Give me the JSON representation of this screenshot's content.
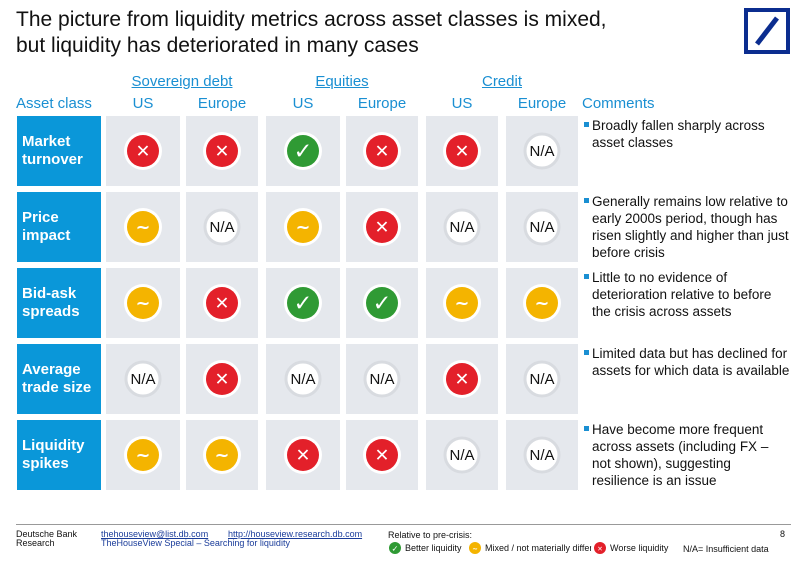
{
  "header": {
    "title": [
      "The picture from liquidity metrics across asset classes is mixed,",
      "but liquidity has deteriorated in many cases"
    ]
  },
  "table": {
    "asset_label": "Asset class",
    "comments_label": "Comments",
    "groups": [
      "Sovereign debt",
      "Equities",
      "Credit"
    ],
    "subcolumns": [
      "US",
      "Europe",
      "US",
      "Europe",
      "US",
      "Europe"
    ],
    "rows": [
      {
        "label": [
          "Market",
          "turnover"
        ],
        "cells": [
          "✕",
          "✕",
          "✓",
          "✕",
          "✕",
          "N/A"
        ],
        "comment": "Broadly fallen sharply across asset classes"
      },
      {
        "label": [
          "Price",
          "impact"
        ],
        "cells": [
          "~",
          "N/A",
          "~",
          "✕",
          "N/A",
          "N/A"
        ],
        "comment": "Generally remains low relative to early 2000s period, though has risen slightly and higher than just before crisis"
      },
      {
        "label": [
          "Bid-ask",
          "spreads"
        ],
        "cells": [
          "~",
          "✕",
          "✓",
          "✓",
          "~",
          "~"
        ],
        "comment": "Little to no evidence of deterioration relative to before the crisis across assets"
      },
      {
        "label": [
          "Average",
          "trade size"
        ],
        "cells": [
          "N/A",
          "✕",
          "N/A",
          "N/A",
          "✕",
          "N/A"
        ],
        "comment": "Limited data but has declined for assets for which data is available"
      },
      {
        "label": [
          "Liquidity",
          "spikes"
        ],
        "cells": [
          "~",
          "~",
          "✕",
          "✕",
          "N/A",
          "N/A"
        ],
        "comment": "Have become more frequent across assets (including FX – not shown), suggesting resilience is an issue"
      }
    ]
  },
  "legend": {
    "title": "Relative to pre-crisis:",
    "entries": [
      {
        "symbol": "✓",
        "color": "#2f9a34",
        "label": "Better liquidity"
      },
      {
        "symbol": "~",
        "color": "#f4b400",
        "label": "Mixed / not materially different"
      },
      {
        "symbol": "✕",
        "color": "#e3202a",
        "label": "Worse liquidity"
      },
      {
        "symbol": "N/A",
        "label": "= Insufficient data"
      }
    ]
  },
  "footer": {
    "org": "Deutsche Bank",
    "dept": "Research",
    "email": "thehouseview@list.db.com",
    "url": "http://houseview.research.db.com",
    "publication": "TheHouseView Special – Searching for liquidity",
    "page": "8"
  }
}
